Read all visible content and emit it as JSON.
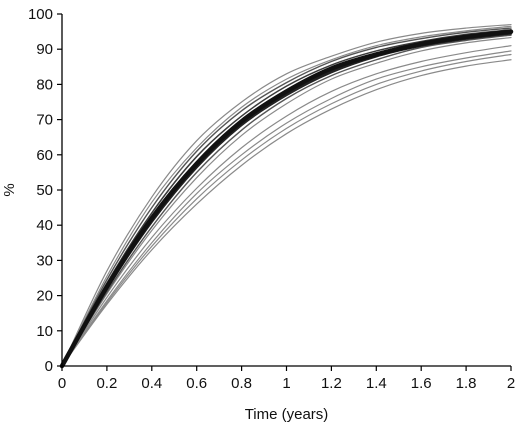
{
  "chart_data": {
    "type": "line",
    "title": "",
    "xlabel": "Time (years)",
    "ylabel": "%",
    "xlim": [
      0,
      2
    ],
    "ylim": [
      0,
      100
    ],
    "xticks": [
      "0",
      "0.2",
      "0.4",
      "0.6",
      "0.8",
      "1",
      "1.2",
      "1.4",
      "1.6",
      "1.8",
      "2"
    ],
    "yticks": [
      "0",
      "10",
      "20",
      "30",
      "40",
      "50",
      "60",
      "70",
      "80",
      "90",
      "100"
    ],
    "grid": false,
    "legend": "none",
    "x": [
      0,
      0.2,
      0.4,
      0.6,
      0.8,
      1.0,
      1.2,
      1.4,
      1.6,
      1.8,
      2.0
    ],
    "series": [
      {
        "values": [
          0,
          27,
          48,
          64,
          75,
          83,
          88,
          92,
          94.5,
          96,
          97
        ],
        "color": "#8a8a8a",
        "width": 1.2
      },
      {
        "values": [
          0,
          25.5,
          46.5,
          62,
          73.5,
          81.5,
          87,
          91,
          93.5,
          95.2,
          96.5
        ],
        "color": "#8a8a8a",
        "width": 1.2
      },
      {
        "values": [
          0,
          24.5,
          45,
          61,
          72.5,
          80.5,
          86.5,
          90.5,
          93,
          94.8,
          96
        ],
        "color": "#555555",
        "width": 1.4
      },
      {
        "values": [
          0,
          23.5,
          43.5,
          59.5,
          71,
          79.5,
          85.5,
          89.5,
          92.2,
          94.2,
          95.5
        ],
        "color": "#3a3a3a",
        "width": 1.5
      },
      {
        "values": [
          0,
          22.5,
          42,
          57.5,
          69.5,
          78,
          84.5,
          88.5,
          91.5,
          93.5,
          95
        ],
        "color": "#111111",
        "width": 4.5
      },
      {
        "values": [
          0,
          22,
          41,
          56.5,
          68.5,
          77,
          83.5,
          88,
          91,
          93,
          94.5
        ],
        "color": "#222222",
        "width": 2.5
      },
      {
        "values": [
          0,
          21,
          39.5,
          55,
          67,
          76,
          82.5,
          87,
          90.5,
          92.5,
          94
        ],
        "color": "#555555",
        "width": 1.4
      },
      {
        "values": [
          0,
          20.5,
          38.5,
          53.5,
          65.5,
          74.5,
          81.5,
          86,
          89.5,
          91.8,
          93.3
        ],
        "color": "#8a8a8a",
        "width": 1.2
      },
      {
        "values": [
          0,
          19.5,
          36.5,
          50.5,
          62,
          71,
          78,
          83,
          86.5,
          89,
          91
        ],
        "color": "#8a8a8a",
        "width": 1.2
      },
      {
        "values": [
          0,
          18.5,
          35,
          49,
          60,
          69,
          76,
          81.5,
          85,
          87.5,
          89.5
        ],
        "color": "#8a8a8a",
        "width": 1.2
      },
      {
        "values": [
          0,
          18,
          34,
          47.5,
          58.5,
          67.5,
          74.5,
          80,
          83.8,
          86.5,
          88.5
        ],
        "color": "#8a8a8a",
        "width": 1.2
      },
      {
        "values": [
          0,
          17.5,
          33,
          46,
          57,
          66,
          73,
          78.5,
          82.5,
          85.2,
          87
        ],
        "color": "#8a8a8a",
        "width": 1.2
      }
    ]
  }
}
